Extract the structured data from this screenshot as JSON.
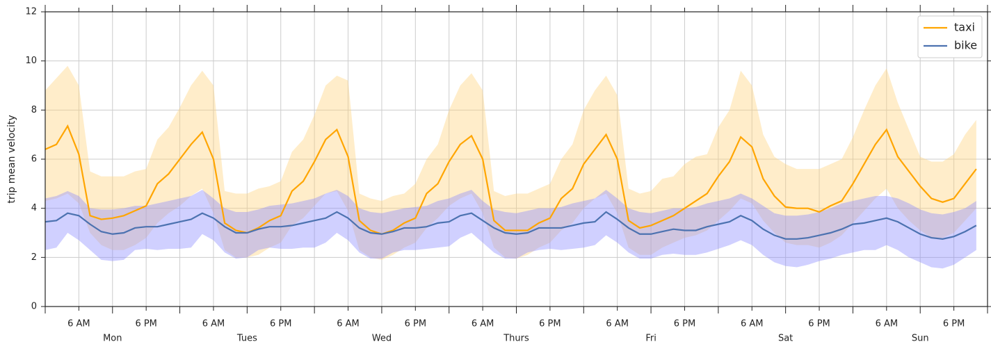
{
  "chart_data": {
    "type": "line",
    "y_label": "trip mean velocity",
    "xlim": [
      0,
      168
    ],
    "ylim": [
      0,
      12
    ],
    "yticks": [
      0,
      2,
      4,
      6,
      8,
      10,
      12
    ],
    "xticks": [
      {
        "value": 6,
        "label": "6 AM"
      },
      {
        "value": 18,
        "label": "6 PM"
      },
      {
        "value": 30,
        "label": "6 AM"
      },
      {
        "value": 42,
        "label": "6 PM"
      },
      {
        "value": 54,
        "label": "6 AM"
      },
      {
        "value": 66,
        "label": "6 PM"
      },
      {
        "value": 78,
        "label": "6 AM"
      },
      {
        "value": 90,
        "label": "6 PM"
      },
      {
        "value": 102,
        "label": "6 AM"
      },
      {
        "value": 114,
        "label": "6 PM"
      },
      {
        "value": 126,
        "label": "6 AM"
      },
      {
        "value": 138,
        "label": "6 PM"
      },
      {
        "value": 150,
        "label": "6 AM"
      },
      {
        "value": 162,
        "label": "6 PM"
      }
    ],
    "xminor_ticks": [
      0,
      12,
      24,
      36,
      48,
      60,
      72,
      84,
      96,
      108,
      120,
      132,
      144,
      156,
      168
    ],
    "day_labels": [
      {
        "value": 12,
        "label": "Mon"
      },
      {
        "value": 36,
        "label": "Tues"
      },
      {
        "value": 60,
        "label": "Wed"
      },
      {
        "value": 84,
        "label": "Thurs"
      },
      {
        "value": 108,
        "label": "Fri"
      },
      {
        "value": 132,
        "label": "Sat"
      },
      {
        "value": 156,
        "label": "Sun"
      }
    ],
    "grid": true,
    "legend": "upper right",
    "x": [
      0,
      2,
      4,
      6,
      8,
      10,
      12,
      14,
      16,
      18,
      20,
      22,
      24,
      26,
      28,
      30,
      32,
      34,
      36,
      38,
      40,
      42,
      44,
      46,
      48,
      50,
      52,
      54,
      56,
      58,
      60,
      62,
      64,
      66,
      68,
      70,
      72,
      74,
      76,
      78,
      80,
      82,
      84,
      86,
      88,
      90,
      92,
      94,
      96,
      98,
      100,
      102,
      104,
      106,
      108,
      110,
      112,
      114,
      116,
      118,
      120,
      122,
      124,
      126,
      128,
      130,
      132,
      134,
      136,
      138,
      140,
      142,
      144,
      146,
      148,
      150,
      152,
      154,
      156,
      158,
      160,
      162,
      164,
      166
    ],
    "series": [
      {
        "name": "taxi",
        "color": "#ffa500",
        "band_color": "#ffd37a",
        "values": [
          6.4,
          6.6,
          7.35,
          6.2,
          3.7,
          3.55,
          3.6,
          3.7,
          3.9,
          4.1,
          5.0,
          5.4,
          6.0,
          6.6,
          7.1,
          6.0,
          3.4,
          3.1,
          3.0,
          3.2,
          3.5,
          3.7,
          4.7,
          5.1,
          5.9,
          6.8,
          7.2,
          6.1,
          3.5,
          3.1,
          2.95,
          3.1,
          3.4,
          3.6,
          4.6,
          5.0,
          5.9,
          6.6,
          6.95,
          6.0,
          3.5,
          3.1,
          3.1,
          3.1,
          3.4,
          3.6,
          4.4,
          4.8,
          5.8,
          6.4,
          7.0,
          6.0,
          3.5,
          3.2,
          3.3,
          3.5,
          3.7,
          4.0,
          4.3,
          4.6,
          5.3,
          5.9,
          6.9,
          6.5,
          5.2,
          4.5,
          4.05,
          4.0,
          4.0,
          3.85,
          4.1,
          4.3,
          5.0,
          5.8,
          6.6,
          7.2,
          6.1,
          5.5,
          4.9,
          4.4,
          4.25,
          4.4,
          5.0,
          5.6
        ],
        "upper": [
          8.8,
          9.3,
          9.8,
          9.0,
          5.5,
          5.3,
          5.3,
          5.3,
          5.5,
          5.6,
          6.8,
          7.3,
          8.1,
          9.0,
          9.6,
          9.0,
          4.7,
          4.6,
          4.6,
          4.8,
          4.9,
          5.1,
          6.3,
          6.8,
          7.8,
          9.0,
          9.4,
          9.2,
          4.6,
          4.4,
          4.3,
          4.5,
          4.6,
          5.0,
          6.0,
          6.6,
          8.0,
          9.0,
          9.5,
          8.8,
          4.7,
          4.5,
          4.6,
          4.6,
          4.8,
          5.0,
          6.0,
          6.6,
          8.0,
          8.8,
          9.4,
          8.6,
          4.8,
          4.6,
          4.7,
          5.2,
          5.3,
          5.8,
          6.1,
          6.2,
          7.3,
          8.0,
          9.6,
          9.0,
          7.0,
          6.1,
          5.8,
          5.6,
          5.6,
          5.6,
          5.8,
          6.0,
          6.9,
          8.0,
          9.0,
          9.7,
          8.3,
          7.2,
          6.1,
          5.9,
          5.9,
          6.2,
          7.0,
          7.6
        ],
        "lower": [
          4.3,
          4.4,
          4.6,
          4.2,
          3.0,
          2.5,
          2.3,
          2.3,
          2.5,
          2.8,
          3.4,
          3.8,
          4.1,
          4.5,
          4.8,
          3.8,
          2.3,
          2.0,
          2.0,
          2.1,
          2.4,
          2.6,
          3.3,
          3.6,
          4.1,
          4.6,
          4.7,
          3.9,
          2.3,
          2.0,
          1.9,
          2.1,
          2.4,
          2.6,
          3.2,
          3.6,
          4.1,
          4.4,
          4.6,
          3.8,
          2.4,
          2.0,
          1.95,
          2.1,
          2.4,
          2.6,
          3.1,
          3.4,
          4.0,
          4.4,
          4.6,
          3.8,
          2.4,
          2.1,
          2.1,
          2.4,
          2.6,
          2.8,
          2.9,
          3.1,
          3.5,
          3.9,
          4.4,
          4.2,
          3.5,
          3.0,
          2.6,
          2.5,
          2.5,
          2.4,
          2.6,
          2.9,
          3.4,
          3.9,
          4.4,
          4.8,
          4.0,
          3.5,
          3.1,
          2.8,
          2.8,
          3.0,
          3.5,
          4.0
        ]
      },
      {
        "name": "bike",
        "color": "#4c72b0",
        "band_color": "#8a8aff",
        "values": [
          3.45,
          3.5,
          3.8,
          3.7,
          3.35,
          3.05,
          2.95,
          3.0,
          3.2,
          3.25,
          3.25,
          3.35,
          3.45,
          3.55,
          3.8,
          3.6,
          3.25,
          3.0,
          3.0,
          3.15,
          3.25,
          3.25,
          3.3,
          3.4,
          3.5,
          3.6,
          3.85,
          3.6,
          3.2,
          3.0,
          2.95,
          3.05,
          3.2,
          3.2,
          3.25,
          3.4,
          3.45,
          3.7,
          3.8,
          3.5,
          3.2,
          3.0,
          2.95,
          3.0,
          3.2,
          3.2,
          3.2,
          3.3,
          3.4,
          3.45,
          3.85,
          3.55,
          3.2,
          2.95,
          2.95,
          3.05,
          3.15,
          3.1,
          3.1,
          3.25,
          3.35,
          3.45,
          3.7,
          3.5,
          3.15,
          2.9,
          2.75,
          2.75,
          2.8,
          2.9,
          3.0,
          3.15,
          3.35,
          3.4,
          3.5,
          3.6,
          3.45,
          3.2,
          2.95,
          2.8,
          2.75,
          2.85,
          3.05,
          3.3
        ],
        "upper": [
          4.4,
          4.5,
          4.7,
          4.5,
          4.0,
          3.95,
          3.95,
          4.0,
          4.1,
          4.1,
          4.2,
          4.3,
          4.4,
          4.5,
          4.75,
          4.4,
          4.0,
          3.85,
          3.85,
          3.95,
          4.1,
          4.15,
          4.2,
          4.3,
          4.4,
          4.6,
          4.75,
          4.5,
          4.0,
          3.85,
          3.8,
          3.9,
          4.0,
          4.05,
          4.1,
          4.3,
          4.4,
          4.6,
          4.75,
          4.3,
          3.95,
          3.85,
          3.8,
          3.9,
          4.0,
          4.0,
          4.05,
          4.2,
          4.3,
          4.4,
          4.75,
          4.4,
          4.0,
          3.85,
          3.8,
          3.9,
          4.0,
          4.0,
          4.05,
          4.2,
          4.3,
          4.4,
          4.6,
          4.4,
          4.1,
          3.8,
          3.7,
          3.7,
          3.75,
          3.85,
          4.0,
          4.2,
          4.3,
          4.4,
          4.5,
          4.5,
          4.4,
          4.2,
          3.95,
          3.8,
          3.75,
          3.85,
          4.0,
          4.3
        ],
        "lower": [
          2.3,
          2.4,
          3.0,
          2.7,
          2.3,
          1.9,
          1.85,
          1.9,
          2.3,
          2.35,
          2.3,
          2.35,
          2.35,
          2.4,
          2.95,
          2.7,
          2.2,
          1.95,
          2.0,
          2.3,
          2.4,
          2.35,
          2.35,
          2.4,
          2.4,
          2.6,
          3.0,
          2.7,
          2.2,
          1.95,
          1.95,
          2.2,
          2.3,
          2.3,
          2.35,
          2.4,
          2.45,
          2.8,
          3.0,
          2.6,
          2.2,
          1.95,
          1.95,
          2.2,
          2.3,
          2.35,
          2.3,
          2.35,
          2.4,
          2.5,
          2.9,
          2.6,
          2.2,
          1.95,
          1.95,
          2.1,
          2.15,
          2.1,
          2.1,
          2.2,
          2.35,
          2.5,
          2.7,
          2.5,
          2.1,
          1.8,
          1.65,
          1.6,
          1.7,
          1.85,
          1.95,
          2.1,
          2.2,
          2.3,
          2.3,
          2.5,
          2.3,
          2.0,
          1.8,
          1.6,
          1.55,
          1.7,
          2.0,
          2.3
        ]
      }
    ]
  }
}
